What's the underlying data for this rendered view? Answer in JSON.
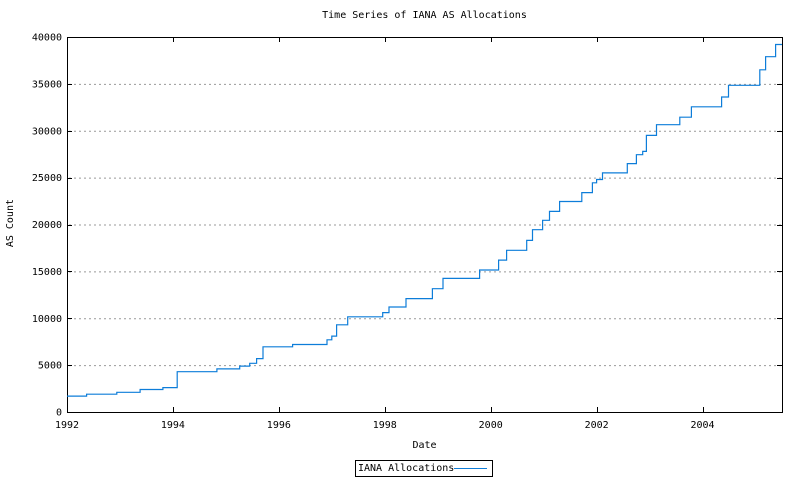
{
  "chart_data": {
    "type": "line",
    "line_style": "step-after",
    "title": "Time Series of IANA AS Allocations",
    "xlabel": "Date",
    "ylabel": "AS Count",
    "xlim": [
      1992,
      2005.5
    ],
    "ylim": [
      0,
      40000
    ],
    "x_ticks": [
      1992,
      1994,
      1996,
      1998,
      2000,
      2002,
      2004
    ],
    "y_ticks": [
      0,
      5000,
      10000,
      15000,
      20000,
      25000,
      30000,
      35000,
      40000
    ],
    "grid": "horizontal dashed gridlines at each y tick, none vertical",
    "ticks": "short inward tick marks on all four borders at major ticks",
    "legend_position": "boxed legend centered below chart",
    "series": [
      {
        "name": "IANA Allocations",
        "color": "#0d7dd9",
        "points": [
          [
            1992.0,
            1700
          ],
          [
            1992.37,
            1900
          ],
          [
            1992.94,
            2100
          ],
          [
            1993.38,
            2400
          ],
          [
            1993.81,
            2600
          ],
          [
            1994.08,
            4300
          ],
          [
            1994.83,
            4600
          ],
          [
            1995.26,
            4900
          ],
          [
            1995.45,
            5200
          ],
          [
            1995.58,
            5700
          ],
          [
            1995.7,
            6950
          ],
          [
            1996.26,
            7200
          ],
          [
            1996.91,
            7700
          ],
          [
            1997.0,
            8100
          ],
          [
            1997.09,
            9300
          ],
          [
            1997.3,
            10150
          ],
          [
            1997.96,
            10600
          ],
          [
            1998.08,
            11200
          ],
          [
            1998.4,
            12100
          ],
          [
            1998.9,
            13150
          ],
          [
            1999.1,
            14250
          ],
          [
            1999.79,
            15150
          ],
          [
            2000.15,
            16200
          ],
          [
            2000.3,
            17250
          ],
          [
            2000.68,
            18300
          ],
          [
            2000.79,
            19450
          ],
          [
            2000.98,
            20450
          ],
          [
            2001.11,
            21400
          ],
          [
            2001.3,
            22450
          ],
          [
            2001.72,
            23400
          ],
          [
            2001.92,
            24450
          ],
          [
            2002.0,
            24800
          ],
          [
            2002.11,
            25500
          ],
          [
            2002.58,
            26500
          ],
          [
            2002.75,
            27450
          ],
          [
            2002.87,
            27800
          ],
          [
            2002.94,
            29500
          ],
          [
            2003.13,
            30650
          ],
          [
            2003.57,
            31450
          ],
          [
            2003.79,
            32550
          ],
          [
            2004.36,
            33600
          ],
          [
            2004.49,
            34850
          ],
          [
            2005.08,
            36500
          ],
          [
            2005.19,
            37900
          ],
          [
            2005.38,
            39200
          ]
        ],
        "end_x": 2005.5
      }
    ]
  },
  "colors": {
    "background": "#ffffff",
    "axis": "#000000",
    "grid": "#999999",
    "text": "#000000",
    "series_line": "#0d7dd9"
  }
}
